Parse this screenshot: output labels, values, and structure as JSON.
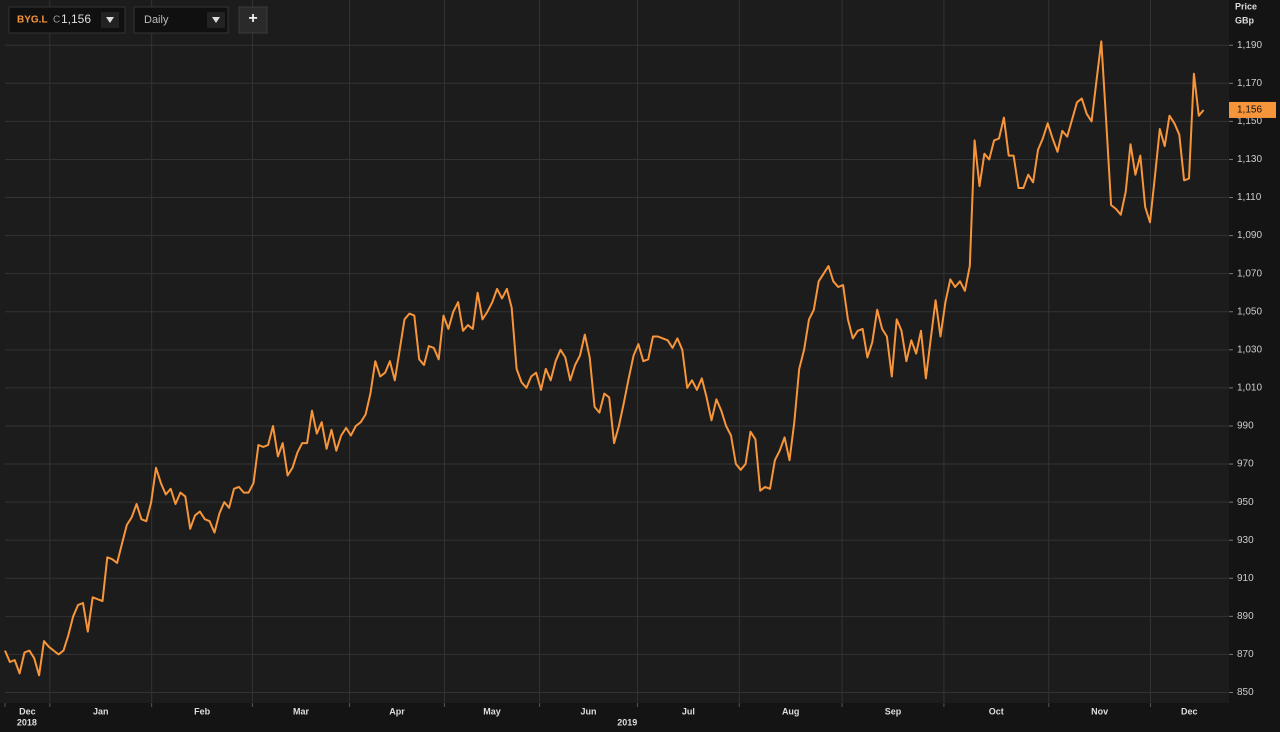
{
  "header": {
    "ric": "BYG.L",
    "close_prefix": "C",
    "close": "1,156",
    "interval": "Daily",
    "add": "+"
  },
  "chart_data": {
    "type": "line",
    "y_axis_title": "Price",
    "y_axis_unit": "GBp",
    "color": "#f7953a",
    "grid": true,
    "values": [
      872,
      866,
      867,
      860,
      871,
      872,
      868,
      859,
      877,
      874,
      872,
      870,
      872,
      880,
      890,
      896,
      897,
      882,
      900,
      899,
      898,
      921,
      920,
      918,
      928,
      938,
      942,
      949,
      941,
      940,
      950,
      968,
      960,
      954,
      957,
      949,
      955,
      953,
      936,
      943,
      945,
      941,
      940,
      934,
      944,
      950,
      947,
      957,
      958,
      955,
      955,
      960,
      980,
      979,
      980,
      990,
      974,
      981,
      964,
      968,
      976,
      981,
      981,
      998,
      986,
      992,
      978,
      988,
      977,
      985,
      989,
      985,
      990,
      992,
      996,
      1007,
      1024,
      1016,
      1018,
      1024,
      1014,
      1030,
      1046,
      1049,
      1048,
      1025,
      1022,
      1032,
      1031,
      1025,
      1048,
      1041,
      1050,
      1055,
      1040,
      1043,
      1041,
      1060,
      1046,
      1050,
      1055,
      1062,
      1057,
      1062,
      1052,
      1020,
      1013,
      1010,
      1016,
      1018,
      1009,
      1020,
      1014,
      1024,
      1030,
      1026,
      1014,
      1022,
      1027,
      1038,
      1026,
      1000,
      997,
      1007,
      1005,
      981,
      990,
      1002,
      1015,
      1027,
      1033,
      1024,
      1025,
      1037,
      1037,
      1036,
      1035,
      1031,
      1036,
      1030,
      1010,
      1014,
      1009,
      1015,
      1005,
      993,
      1004,
      998,
      990,
      985,
      970,
      967,
      970,
      987,
      983,
      956,
      958,
      957,
      972,
      977,
      984,
      972,
      992,
      1020,
      1030,
      1046,
      1051,
      1066,
      1070,
      1074,
      1066,
      1063,
      1064,
      1046,
      1036,
      1040,
      1041,
      1026,
      1034,
      1051,
      1041,
      1037,
      1016,
      1046,
      1040,
      1024,
      1035,
      1028,
      1040,
      1015,
      1036,
      1056,
      1037,
      1055,
      1067,
      1063,
      1066,
      1061,
      1074,
      1140,
      1116,
      1133,
      1130,
      1140,
      1141,
      1152,
      1132,
      1132,
      1115,
      1115,
      1122,
      1118,
      1135,
      1141,
      1149,
      1141,
      1134,
      1145,
      1142,
      1151,
      1160,
      1162,
      1154,
      1150,
      1171,
      1192,
      1150,
      1106,
      1104,
      1101,
      1113,
      1138,
      1122,
      1132,
      1105,
      1097,
      1121,
      1146,
      1137,
      1153,
      1149,
      1143,
      1119,
      1120,
      1175,
      1153,
      1156
    ],
    "last_value_label": "1,156",
    "xlim": [
      0,
      251
    ],
    "xticks": [
      {
        "value": 0,
        "label": "Dec"
      },
      {
        "value": 9.2,
        "label": "Jan"
      },
      {
        "value": 30.1,
        "label": "Feb"
      },
      {
        "value": 50.8,
        "label": "Mar"
      },
      {
        "value": 70.7,
        "label": "Apr"
      },
      {
        "value": 90.2,
        "label": "May"
      },
      {
        "value": 109.7,
        "label": "Jun"
      },
      {
        "value": 129.8,
        "label": "Jul"
      },
      {
        "value": 150.7,
        "label": "Aug"
      },
      {
        "value": 171.8,
        "label": "Sep"
      },
      {
        "value": 192.7,
        "label": "Oct"
      },
      {
        "value": 214.2,
        "label": "Nov"
      },
      {
        "value": 235.1,
        "label": "Dec"
      }
    ],
    "year_ticks": [
      {
        "value": 4.5,
        "label": "2018"
      },
      {
        "value": 127.7,
        "label": "2019"
      }
    ],
    "ylim": [
      845,
      1198
    ],
    "yticks": [
      850,
      870,
      890,
      910,
      930,
      950,
      970,
      990,
      {
        "value": 1010,
        "label": "1,010"
      },
      {
        "value": 1030,
        "label": "1,030"
      },
      {
        "value": 1050,
        "label": "1,050"
      },
      {
        "value": 1070,
        "label": "1,070"
      },
      {
        "value": 1090,
        "label": "1,090"
      },
      {
        "value": 1110,
        "label": "1,110"
      },
      {
        "value": 1130,
        "label": "1,130"
      },
      {
        "value": 1150,
        "label": "1,150"
      },
      {
        "value": 1170,
        "label": "1,170"
      },
      {
        "value": 1190,
        "label": "1,190"
      }
    ]
  }
}
